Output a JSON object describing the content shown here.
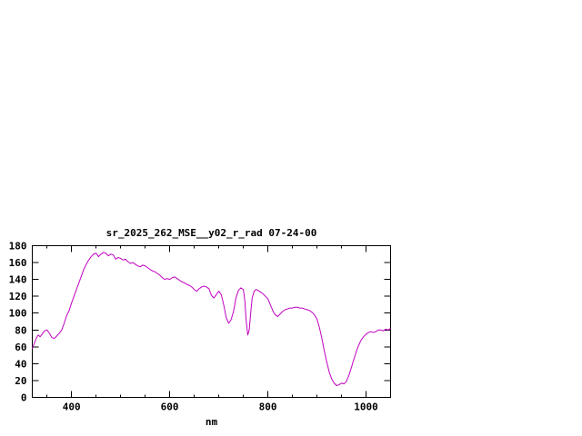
{
  "chart_data": {
    "type": "line",
    "title": "sr_2025_262_MSE__y02_r_rad 07-24-00",
    "xlabel": "nm",
    "ylabel": "",
    "xlim": [
      320,
      1050
    ],
    "ylim": [
      0,
      180
    ],
    "x_ticks": [
      400,
      600,
      800,
      1000
    ],
    "y_ticks": [
      0,
      20,
      40,
      60,
      80,
      100,
      120,
      140,
      160,
      180
    ],
    "grid": false,
    "legend": "none",
    "axis_color": "#000000",
    "background": "#ffffff",
    "series": [
      {
        "name": "sr_2025_262_MSE__y02_r_rad",
        "color": "#c000c0",
        "points": [
          [
            320,
            58
          ],
          [
            324,
            64
          ],
          [
            328,
            70
          ],
          [
            332,
            74
          ],
          [
            336,
            72
          ],
          [
            340,
            75
          ],
          [
            345,
            79
          ],
          [
            350,
            80
          ],
          [
            355,
            76
          ],
          [
            360,
            71
          ],
          [
            365,
            70
          ],
          [
            370,
            73
          ],
          [
            375,
            76
          ],
          [
            380,
            80
          ],
          [
            385,
            88
          ],
          [
            390,
            97
          ],
          [
            395,
            103
          ],
          [
            400,
            112
          ],
          [
            405,
            120
          ],
          [
            410,
            128
          ],
          [
            415,
            136
          ],
          [
            420,
            144
          ],
          [
            425,
            152
          ],
          [
            430,
            158
          ],
          [
            435,
            163
          ],
          [
            440,
            167
          ],
          [
            445,
            170
          ],
          [
            450,
            171
          ],
          [
            455,
            167
          ],
          [
            460,
            170
          ],
          [
            465,
            172
          ],
          [
            470,
            171
          ],
          [
            475,
            168
          ],
          [
            480,
            170
          ],
          [
            485,
            169
          ],
          [
            490,
            164
          ],
          [
            495,
            166
          ],
          [
            500,
            165
          ],
          [
            505,
            163
          ],
          [
            510,
            164
          ],
          [
            515,
            161
          ],
          [
            520,
            159
          ],
          [
            525,
            160
          ],
          [
            530,
            158
          ],
          [
            535,
            156
          ],
          [
            540,
            155
          ],
          [
            545,
            157
          ],
          [
            550,
            156
          ],
          [
            555,
            154
          ],
          [
            560,
            152
          ],
          [
            565,
            150
          ],
          [
            570,
            149
          ],
          [
            575,
            147
          ],
          [
            580,
            145
          ],
          [
            585,
            142
          ],
          [
            590,
            140
          ],
          [
            595,
            141
          ],
          [
            600,
            140
          ],
          [
            605,
            142
          ],
          [
            610,
            143
          ],
          [
            615,
            141
          ],
          [
            620,
            139
          ],
          [
            625,
            137
          ],
          [
            630,
            136
          ],
          [
            635,
            134
          ],
          [
            640,
            133
          ],
          [
            645,
            131
          ],
          [
            650,
            128
          ],
          [
            655,
            126
          ],
          [
            660,
            129
          ],
          [
            665,
            131
          ],
          [
            670,
            132
          ],
          [
            675,
            131
          ],
          [
            680,
            129
          ],
          [
            685,
            121
          ],
          [
            690,
            118
          ],
          [
            695,
            122
          ],
          [
            700,
            126
          ],
          [
            705,
            122
          ],
          [
            710,
            110
          ],
          [
            715,
            95
          ],
          [
            720,
            88
          ],
          [
            725,
            92
          ],
          [
            730,
            102
          ],
          [
            735,
            118
          ],
          [
            740,
            127
          ],
          [
            745,
            130
          ],
          [
            750,
            128
          ],
          [
            753,
            115
          ],
          [
            756,
            90
          ],
          [
            759,
            74
          ],
          [
            762,
            80
          ],
          [
            765,
            100
          ],
          [
            768,
            118
          ],
          [
            772,
            126
          ],
          [
            776,
            128
          ],
          [
            780,
            127
          ],
          [
            785,
            125
          ],
          [
            790,
            123
          ],
          [
            795,
            120
          ],
          [
            800,
            117
          ],
          [
            805,
            110
          ],
          [
            810,
            103
          ],
          [
            815,
            98
          ],
          [
            820,
            96
          ],
          [
            825,
            99
          ],
          [
            830,
            102
          ],
          [
            835,
            104
          ],
          [
            840,
            105
          ],
          [
            845,
            106
          ],
          [
            850,
            106
          ],
          [
            855,
            107
          ],
          [
            860,
            107
          ],
          [
            865,
            106
          ],
          [
            870,
            106
          ],
          [
            875,
            105
          ],
          [
            880,
            104
          ],
          [
            885,
            103
          ],
          [
            890,
            101
          ],
          [
            895,
            98
          ],
          [
            900,
            93
          ],
          [
            905,
            83
          ],
          [
            910,
            70
          ],
          [
            915,
            55
          ],
          [
            920,
            42
          ],
          [
            925,
            30
          ],
          [
            930,
            22
          ],
          [
            935,
            17
          ],
          [
            940,
            14
          ],
          [
            945,
            15
          ],
          [
            950,
            17
          ],
          [
            955,
            16
          ],
          [
            960,
            19
          ],
          [
            965,
            26
          ],
          [
            970,
            35
          ],
          [
            975,
            45
          ],
          [
            980,
            54
          ],
          [
            985,
            62
          ],
          [
            990,
            68
          ],
          [
            995,
            72
          ],
          [
            1000,
            75
          ],
          [
            1005,
            77
          ],
          [
            1010,
            78
          ],
          [
            1015,
            77
          ],
          [
            1020,
            78
          ],
          [
            1025,
            80
          ],
          [
            1030,
            80
          ],
          [
            1035,
            79
          ],
          [
            1040,
            81
          ],
          [
            1045,
            80
          ],
          [
            1050,
            82
          ]
        ]
      }
    ]
  }
}
